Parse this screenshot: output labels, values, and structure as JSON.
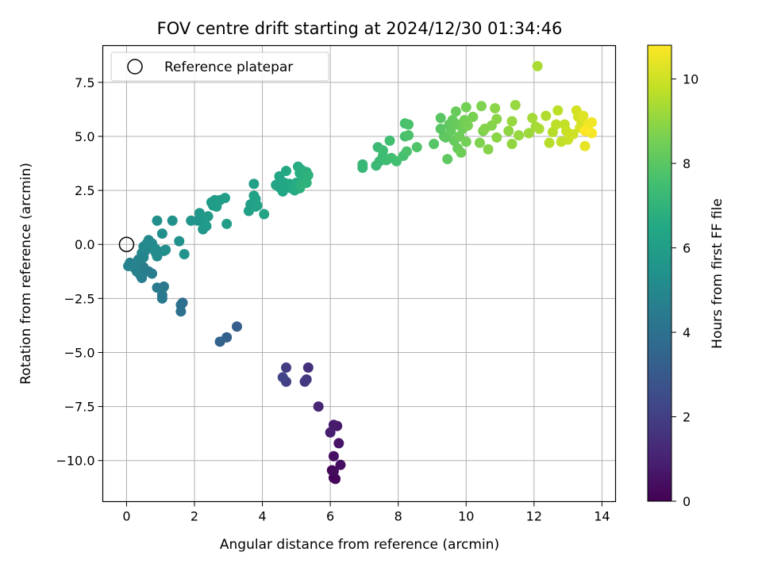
{
  "chart_data": {
    "type": "scatter",
    "title": "FOV centre drift starting at 2024/12/30 01:34:46",
    "xlabel": "Angular distance from reference (arcmin)",
    "ylabel": "Rotation from reference (arcmin)",
    "xlim": [
      -0.7,
      14.4
    ],
    "ylim": [
      -11.9,
      9.2
    ],
    "xticks": [
      0,
      2,
      4,
      6,
      8,
      10,
      12,
      14
    ],
    "yticks": [
      -10.0,
      -7.5,
      -5.0,
      -2.5,
      0.0,
      2.5,
      5.0,
      7.5
    ],
    "xtick_labels": [
      "0",
      "2",
      "4",
      "6",
      "8",
      "10",
      "12",
      "14"
    ],
    "ytick_labels": [
      "−10.0",
      "−7.5",
      "−5.0",
      "−2.5",
      "0.0",
      "2.5",
      "5.0",
      "7.5"
    ],
    "grid": true,
    "legend": {
      "placement": "top-left",
      "label": "Reference platepar",
      "marker": "hollow circle"
    },
    "reference_point": {
      "x": 0,
      "y": 0
    },
    "colormap": "viridis",
    "colorbar": {
      "label": "Hours from first FF file",
      "range": [
        0,
        10.8
      ],
      "ticks": [
        0,
        2,
        4,
        6,
        8,
        10
      ],
      "tick_labels": [
        "0",
        "2",
        "4",
        "6",
        "8",
        "10"
      ]
    },
    "points": [
      [
        6.1,
        -10.8,
        0.1
      ],
      [
        6.15,
        -10.85,
        0.15
      ],
      [
        6.05,
        -10.45,
        0.2
      ],
      [
        6.1,
        -10.5,
        0.3
      ],
      [
        6.3,
        -10.2,
        0.4
      ],
      [
        6.1,
        -9.8,
        0.5
      ],
      [
        6.25,
        -9.2,
        0.6
      ],
      [
        6.2,
        -8.4,
        0.7
      ],
      [
        6.1,
        -8.35,
        0.8
      ],
      [
        6.0,
        -8.7,
        0.9
      ],
      [
        5.65,
        -7.5,
        1.1
      ],
      [
        5.35,
        -5.7,
        1.5
      ],
      [
        5.3,
        -6.25,
        1.7
      ],
      [
        5.25,
        -6.35,
        1.8
      ],
      [
        4.7,
        -5.7,
        1.9
      ],
      [
        4.7,
        -6.35,
        2.0
      ],
      [
        4.6,
        -6.15,
        2.2
      ],
      [
        3.25,
        -3.8,
        3.2
      ],
      [
        2.95,
        -4.3,
        3.3
      ],
      [
        2.75,
        -4.5,
        3.4
      ],
      [
        1.65,
        -2.7,
        3.9
      ],
      [
        1.6,
        -2.8,
        4.0
      ],
      [
        1.6,
        -3.1,
        4.0
      ],
      [
        1.05,
        -2.35,
        4.2
      ],
      [
        1.1,
        -1.95,
        4.3
      ],
      [
        1.05,
        -2.05,
        4.3
      ],
      [
        0.9,
        -2.0,
        4.4
      ],
      [
        1.05,
        -2.5,
        4.4
      ],
      [
        0.75,
        -1.35,
        4.5
      ],
      [
        0.65,
        -1.25,
        4.5
      ],
      [
        0.5,
        -1.05,
        4.6
      ],
      [
        0.45,
        -1.55,
        4.6
      ],
      [
        0.4,
        -1.4,
        4.6
      ],
      [
        0.3,
        -1.25,
        4.7
      ],
      [
        0.2,
        -1.05,
        4.7
      ],
      [
        0.1,
        -0.85,
        4.7
      ],
      [
        0.05,
        -1.0,
        4.8
      ],
      [
        0.25,
        -0.9,
        4.8
      ],
      [
        0.35,
        -0.7,
        4.8
      ],
      [
        0.5,
        -0.6,
        4.9
      ],
      [
        0.45,
        -0.4,
        4.9
      ],
      [
        0.55,
        -0.3,
        4.9
      ],
      [
        0.65,
        -0.15,
        5.0
      ],
      [
        0.5,
        -0.1,
        5.0
      ],
      [
        0.6,
        0.05,
        5.0
      ],
      [
        0.65,
        0.2,
        5.1
      ],
      [
        0.75,
        0.05,
        5.1
      ],
      [
        0.85,
        -0.35,
        5.1
      ],
      [
        0.9,
        -0.55,
        5.2
      ],
      [
        0.85,
        -0.2,
        5.2
      ],
      [
        1.1,
        -0.3,
        5.2
      ],
      [
        1.15,
        -0.25,
        5.3
      ],
      [
        0.9,
        1.1,
        5.3
      ],
      [
        1.05,
        0.5,
        5.3
      ],
      [
        1.35,
        1.1,
        5.4
      ],
      [
        1.55,
        0.15,
        5.4
      ],
      [
        1.7,
        -0.45,
        5.5
      ],
      [
        1.9,
        1.1,
        5.6
      ],
      [
        2.1,
        1.1,
        5.6
      ],
      [
        2.15,
        1.45,
        5.7
      ],
      [
        2.25,
        0.7,
        5.7
      ],
      [
        2.3,
        1.15,
        5.7
      ],
      [
        2.35,
        0.85,
        5.8
      ],
      [
        2.4,
        1.3,
        5.8
      ],
      [
        2.55,
        1.8,
        5.8
      ],
      [
        2.5,
        1.95,
        5.9
      ],
      [
        2.6,
        2.05,
        5.9
      ],
      [
        2.65,
        1.75,
        5.9
      ],
      [
        2.75,
        2.05,
        6.0
      ],
      [
        2.9,
        2.15,
        6.0
      ],
      [
        2.95,
        0.95,
        6.0
      ],
      [
        3.6,
        1.55,
        6.1
      ],
      [
        3.65,
        1.85,
        6.1
      ],
      [
        3.75,
        2.8,
        6.1
      ],
      [
        3.75,
        2.25,
        6.2
      ],
      [
        3.8,
        2.1,
        6.2
      ],
      [
        3.8,
        1.75,
        6.2
      ],
      [
        3.85,
        1.8,
        6.2
      ],
      [
        4.05,
        1.4,
        6.3
      ],
      [
        4.4,
        2.75,
        6.3
      ],
      [
        4.5,
        2.65,
        6.3
      ],
      [
        4.5,
        3.15,
        6.4
      ],
      [
        4.6,
        2.45,
        6.4
      ],
      [
        4.65,
        2.85,
        6.4
      ],
      [
        4.7,
        3.4,
        6.5
      ],
      [
        4.8,
        2.8,
        6.5
      ],
      [
        4.85,
        2.6,
        6.5
      ],
      [
        4.95,
        2.5,
        6.6
      ],
      [
        5.0,
        2.85,
        6.6
      ],
      [
        5.05,
        3.6,
        6.6
      ],
      [
        5.1,
        3.3,
        6.7
      ],
      [
        5.15,
        3.45,
        6.7
      ],
      [
        5.1,
        2.6,
        6.7
      ],
      [
        5.2,
        3.0,
        6.8
      ],
      [
        5.25,
        2.9,
        6.8
      ],
      [
        5.3,
        3.35,
        6.8
      ],
      [
        5.35,
        3.2,
        6.9
      ],
      [
        5.3,
        2.85,
        6.9
      ],
      [
        5.15,
        2.75,
        6.9
      ],
      [
        6.95,
        3.7,
        7.2
      ],
      [
        6.95,
        3.55,
        7.2
      ],
      [
        7.35,
        3.65,
        7.3
      ],
      [
        7.4,
        4.5,
        7.3
      ],
      [
        7.45,
        3.85,
        7.3
      ],
      [
        7.55,
        4.1,
        7.4
      ],
      [
        7.55,
        4.35,
        7.4
      ],
      [
        7.65,
        3.9,
        7.4
      ],
      [
        7.75,
        4.8,
        7.5
      ],
      [
        7.8,
        4.0,
        7.5
      ],
      [
        7.95,
        3.85,
        7.5
      ],
      [
        8.15,
        4.1,
        7.6
      ],
      [
        8.2,
        5.6,
        7.6
      ],
      [
        8.2,
        5.0,
        7.6
      ],
      [
        8.25,
        4.3,
        7.7
      ],
      [
        8.3,
        5.55,
        7.7
      ],
      [
        8.3,
        5.05,
        7.7
      ],
      [
        8.55,
        4.5,
        7.8
      ],
      [
        9.05,
        4.65,
        7.9
      ],
      [
        9.25,
        5.85,
        8.0
      ],
      [
        9.25,
        5.35,
        8.0
      ],
      [
        9.35,
        5.0,
        8.0
      ],
      [
        9.4,
        4.95,
        8.1
      ],
      [
        9.45,
        3.95,
        8.1
      ],
      [
        9.5,
        5.55,
        8.1
      ],
      [
        9.55,
        5.25,
        8.2
      ],
      [
        9.6,
        5.75,
        8.2
      ],
      [
        9.65,
        4.8,
        8.2
      ],
      [
        9.7,
        6.15,
        8.3
      ],
      [
        9.75,
        5.55,
        8.3
      ],
      [
        9.75,
        4.45,
        8.3
      ],
      [
        9.8,
        5.0,
        8.4
      ],
      [
        9.85,
        4.25,
        8.4
      ],
      [
        9.9,
        5.35,
        8.4
      ],
      [
        9.95,
        5.75,
        8.5
      ],
      [
        10.0,
        6.35,
        8.5
      ],
      [
        10.0,
        4.75,
        8.5
      ],
      [
        10.05,
        5.5,
        8.6
      ],
      [
        10.2,
        5.9,
        8.6
      ],
      [
        10.4,
        4.7,
        8.7
      ],
      [
        10.45,
        6.4,
        8.7
      ],
      [
        10.5,
        5.25,
        8.7
      ],
      [
        10.55,
        5.35,
        8.8
      ],
      [
        10.65,
        4.4,
        8.8
      ],
      [
        10.75,
        5.5,
        8.8
      ],
      [
        10.85,
        6.3,
        8.9
      ],
      [
        10.9,
        5.8,
        8.9
      ],
      [
        10.9,
        4.95,
        8.9
      ],
      [
        11.25,
        5.25,
        9.0
      ],
      [
        11.35,
        4.65,
        9.0
      ],
      [
        11.35,
        5.7,
        9.1
      ],
      [
        11.45,
        6.45,
        9.1
      ],
      [
        11.55,
        5.05,
        9.1
      ],
      [
        11.85,
        5.15,
        9.2
      ],
      [
        11.95,
        5.85,
        9.3
      ],
      [
        12.05,
        5.45,
        9.3
      ],
      [
        12.15,
        5.35,
        9.4
      ],
      [
        12.1,
        8.25,
        9.4
      ],
      [
        12.35,
        5.95,
        9.5
      ],
      [
        12.45,
        4.7,
        9.6
      ],
      [
        12.55,
        5.2,
        9.6
      ],
      [
        12.65,
        5.55,
        9.7
      ],
      [
        12.7,
        6.2,
        9.7
      ],
      [
        12.8,
        4.75,
        9.8
      ],
      [
        12.9,
        5.55,
        9.8
      ],
      [
        12.95,
        5.25,
        9.9
      ],
      [
        13.0,
        4.85,
        9.9
      ],
      [
        13.15,
        5.1,
        10.0
      ],
      [
        13.25,
        6.2,
        10.1
      ],
      [
        13.3,
        5.9,
        10.1
      ],
      [
        13.35,
        5.4,
        10.2
      ],
      [
        13.4,
        5.65,
        10.2
      ],
      [
        13.45,
        5.95,
        10.3
      ],
      [
        13.5,
        4.55,
        10.4
      ],
      [
        13.55,
        5.3,
        10.5
      ],
      [
        13.6,
        5.55,
        10.6
      ],
      [
        13.7,
        5.65,
        10.6
      ],
      [
        13.7,
        5.15,
        10.7
      ],
      [
        13.5,
        5.25,
        10.8
      ]
    ]
  }
}
